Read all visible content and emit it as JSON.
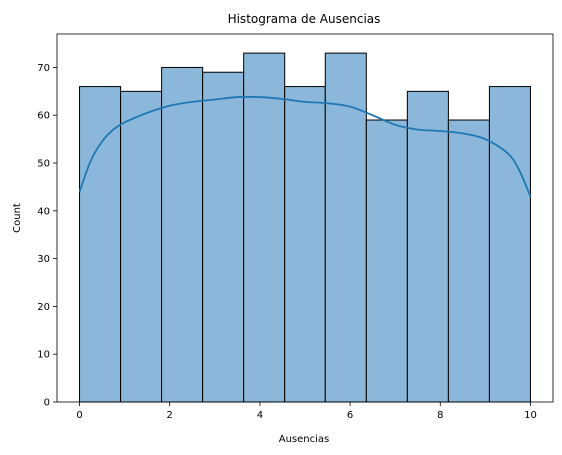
{
  "chart_data": {
    "type": "bar",
    "title": "Histograma de Ausencias",
    "xlabel": "Ausencias",
    "ylabel": "Count",
    "xlim": [
      -0.5,
      10.5
    ],
    "ylim": [
      0,
      77
    ],
    "xticks": [
      0,
      2,
      4,
      6,
      8,
      10
    ],
    "yticks": [
      0,
      10,
      20,
      30,
      40,
      50,
      60,
      70
    ],
    "bins": [
      {
        "start": 0.0,
        "end": 0.91,
        "count": 66
      },
      {
        "start": 0.91,
        "end": 1.82,
        "count": 65
      },
      {
        "start": 1.82,
        "end": 2.73,
        "count": 70
      },
      {
        "start": 2.73,
        "end": 3.64,
        "count": 69
      },
      {
        "start": 3.64,
        "end": 4.55,
        "count": 73
      },
      {
        "start": 4.55,
        "end": 5.45,
        "count": 66
      },
      {
        "start": 5.45,
        "end": 6.36,
        "count": 73
      },
      {
        "start": 6.36,
        "end": 7.27,
        "count": 59
      },
      {
        "start": 7.27,
        "end": 8.18,
        "count": 65
      },
      {
        "start": 8.18,
        "end": 9.09,
        "count": 59
      },
      {
        "start": 9.09,
        "end": 10.0,
        "count": 66
      }
    ],
    "kde": {
      "x": [
        0,
        0.25,
        0.5,
        0.75,
        1,
        1.5,
        2,
        2.5,
        3,
        3.5,
        4,
        4.5,
        5,
        5.5,
        6,
        6.5,
        7,
        7.5,
        8,
        8.5,
        9,
        9.5,
        9.75,
        10
      ],
      "y": [
        44,
        50.5,
        54.5,
        57,
        58.5,
        60.5,
        62,
        62.8,
        63.3,
        63.8,
        63.8,
        63.4,
        62.8,
        62.5,
        61.8,
        60,
        58,
        57,
        56.7,
        56.2,
        55,
        52,
        48.5,
        43
      ]
    },
    "colors": {
      "bar_fill": "#8bb8da",
      "bar_edge": "#000000",
      "kde_line": "#1f77b4"
    },
    "grid": false,
    "legend": "none"
  }
}
